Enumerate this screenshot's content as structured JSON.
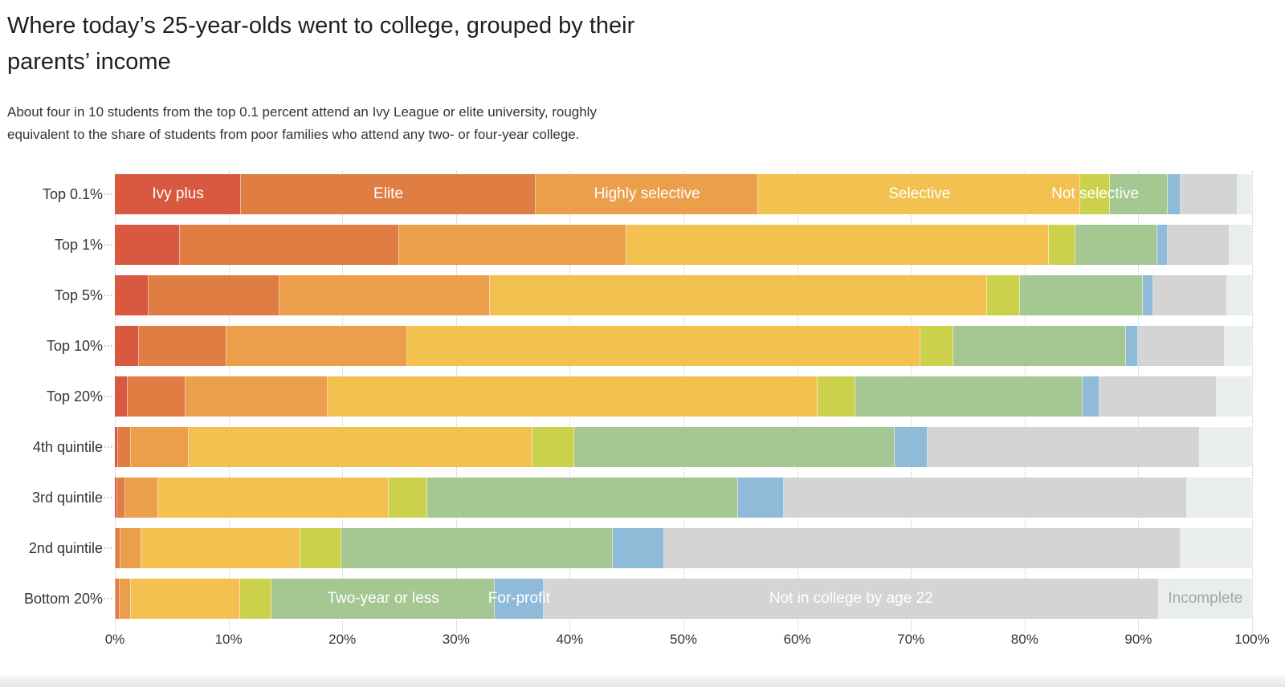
{
  "page": {
    "title": "Where today’s 25-year-olds went to college, grouped by their parents’ income",
    "subtitle": "About four in 10 students from the top 0.1 percent attend an Ivy League or elite university, roughly equivalent to the share of students from poor families who attend any two- or four-year college."
  },
  "chart_data": {
    "type": "bar",
    "variant": "stacked-horizontal-100pct",
    "unit": "%",
    "xlim": [
      0,
      100
    ],
    "grid": "dotted-vertical-every-10pct",
    "x_ticks": [
      "0%",
      "10%",
      "20%",
      "30%",
      "40%",
      "50%",
      "60%",
      "70%",
      "80%",
      "90%",
      "100%"
    ],
    "categories": [
      "Top 0.1%",
      "Top 1%",
      "Top 5%",
      "Top 10%",
      "Top 20%",
      "4th quintile",
      "3rd quintile",
      "2nd quintile",
      "Bottom 20%"
    ],
    "series": [
      {
        "name": "Ivy plus",
        "color": "#d8593f",
        "label_on_row": 0,
        "label_color": "#ffffff",
        "values": [
          11.1,
          5.7,
          3.0,
          2.1,
          1.1,
          0.3,
          0.2,
          0.1,
          0.1
        ]
      },
      {
        "name": "Elite",
        "color": "#e07d43",
        "label_on_row": 0,
        "label_color": "#ffffff",
        "values": [
          25.9,
          19.3,
          11.5,
          7.7,
          5.1,
          1.1,
          0.7,
          0.4,
          0.3
        ]
      },
      {
        "name": "Highly selective",
        "color": "#eb9f4b",
        "label_on_row": 0,
        "label_color": "#ffffff",
        "values": [
          19.6,
          20.0,
          18.5,
          15.9,
          12.5,
          5.1,
          2.9,
          1.8,
          1.0
        ]
      },
      {
        "name": "Selective",
        "color": "#f2c150",
        "label_on_row": 0,
        "label_color": "#ffffff",
        "values": [
          28.3,
          37.1,
          43.7,
          45.1,
          43.1,
          30.2,
          20.3,
          14.0,
          9.6
        ]
      },
      {
        "name": "Not selective",
        "color": "#ccd14b",
        "label_on_row": 0,
        "label_color": "#ffffff",
        "values": [
          2.6,
          2.4,
          2.9,
          2.9,
          3.3,
          3.7,
          3.4,
          3.6,
          2.8
        ]
      },
      {
        "name": "Two-year or less",
        "color": "#a5c791",
        "label_on_row": 8,
        "label_color": "#ffffff",
        "values": [
          5.1,
          7.2,
          10.8,
          15.2,
          20.0,
          28.2,
          27.3,
          23.9,
          19.6
        ]
      },
      {
        "name": "For-profit",
        "color": "#8fbbd8",
        "label_on_row": 8,
        "label_color": "#ffffff",
        "values": [
          1.1,
          0.9,
          0.9,
          1.1,
          1.5,
          2.9,
          4.0,
          4.5,
          4.3
        ]
      },
      {
        "name": "Not in college by age 22",
        "color": "#d4d4d4",
        "label_on_row": 8,
        "label_color": "#ffffff",
        "values": [
          5.0,
          5.4,
          6.5,
          7.6,
          10.3,
          23.9,
          35.5,
          45.4,
          54.1
        ]
      },
      {
        "name": "Incomplete",
        "color": "#eaeded",
        "label_on_row": 8,
        "label_color": "#a4a8aa",
        "values": [
          1.3,
          2.0,
          2.2,
          2.4,
          3.1,
          4.6,
          5.7,
          6.3,
          8.2
        ]
      }
    ]
  }
}
